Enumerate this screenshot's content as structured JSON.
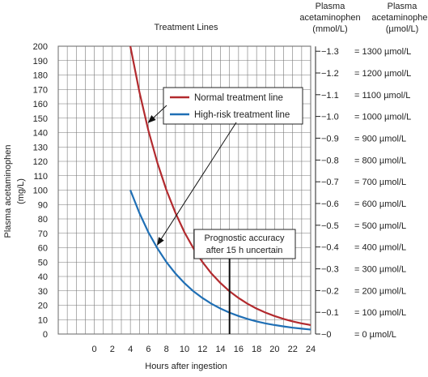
{
  "chart_data": {
    "type": "line",
    "title": "Treatment Lines",
    "xlabel": "Hours after ingestion",
    "ylabel": "Plasma acetaminophen (mg/L)",
    "xlim": [
      -4,
      24
    ],
    "ylim": [
      0,
      200
    ],
    "x_ticks": [
      0,
      2,
      4,
      6,
      8,
      10,
      12,
      14,
      16,
      18,
      20,
      22,
      24
    ],
    "y_ticks": [
      0,
      10,
      20,
      30,
      40,
      50,
      60,
      70,
      80,
      90,
      100,
      110,
      120,
      130,
      140,
      150,
      160,
      170,
      180,
      190,
      200
    ],
    "grid": true,
    "right_axis_mmol": {
      "header": "Plasma acetaminophen (mmol/L)",
      "ticks": [
        {
          "label": "−1.3",
          "mg": 196.5
        },
        {
          "label": "−1.2",
          "mg": 181.4
        },
        {
          "label": "−1.1",
          "mg": 166.3
        },
        {
          "label": "−1.0",
          "mg": 151.2
        },
        {
          "label": "−0.9",
          "mg": 136.1
        },
        {
          "label": "−0.8",
          "mg": 120.9
        },
        {
          "label": "−0.7",
          "mg": 105.8
        },
        {
          "label": "−0.6",
          "mg": 90.7
        },
        {
          "label": "−0.5",
          "mg": 75.6
        },
        {
          "label": "−0.4",
          "mg": 60.5
        },
        {
          "label": "−0.3",
          "mg": 45.3
        },
        {
          "label": "−0.2",
          "mg": 30.2
        },
        {
          "label": "−0.1",
          "mg": 15.1
        },
        {
          "label": "−0",
          "mg": 0
        }
      ]
    },
    "right_axis_umol": {
      "header": "Plasma acetaminophen (µmol/L)",
      "ticks": [
        {
          "label": "= 1300 µmol/L",
          "mg": 196.5
        },
        {
          "label": "= 1200 µmol/L",
          "mg": 181.4
        },
        {
          "label": "= 1100 µmol/L",
          "mg": 166.3
        },
        {
          "label": "= 1000 µmol/L",
          "mg": 151.2
        },
        {
          "label": "= 900 µmol/L",
          "mg": 136.1
        },
        {
          "label": "= 800 µmol/L",
          "mg": 120.9
        },
        {
          "label": "= 700 µmol/L",
          "mg": 105.8
        },
        {
          "label": "= 600 µmol/L",
          "mg": 90.7
        },
        {
          "label": "= 500 µmol/L",
          "mg": 75.6
        },
        {
          "label": "= 400 µmol/L",
          "mg": 60.5
        },
        {
          "label": "= 300 µmol/L",
          "mg": 45.3
        },
        {
          "label": "= 200 µmol/L",
          "mg": 30.2
        },
        {
          "label": "= 100 µmol/L",
          "mg": 15.1
        },
        {
          "label": "= 0 µmol/L",
          "mg": 0
        }
      ]
    },
    "series": [
      {
        "name": "Normal treatment line",
        "color": "#b22a2e",
        "x": [
          4,
          5,
          6,
          7,
          8,
          9,
          10,
          11,
          12,
          13,
          14,
          15,
          16,
          17,
          18,
          19,
          20,
          21,
          22,
          23,
          24
        ],
        "values": [
          200,
          168.2,
          141.4,
          118.9,
          100,
          84.1,
          70.7,
          59.5,
          50,
          42,
          35.4,
          29.7,
          25,
          21,
          17.7,
          14.9,
          12.5,
          10.5,
          8.8,
          7.4,
          6.25
        ]
      },
      {
        "name": "High-risk treatment line",
        "color": "#1f6fb5",
        "x": [
          4,
          5,
          6,
          7,
          8,
          9,
          10,
          11,
          12,
          13,
          14,
          15,
          16,
          17,
          18,
          19,
          20,
          21,
          22,
          23,
          24
        ],
        "values": [
          100,
          84.1,
          70.7,
          59.5,
          50,
          42,
          35.4,
          29.7,
          25,
          21,
          17.7,
          14.9,
          12.5,
          10.5,
          8.8,
          7.4,
          6.25,
          5.3,
          4.4,
          3.7,
          3.1
        ]
      }
    ],
    "annotations": [
      {
        "text_lines": [
          "Prognostic accuracy",
          "after 15 h uncertain"
        ],
        "x": 15
      }
    ],
    "legend_arrows": [
      {
        "series": 0,
        "target_x": 6,
        "target_y": 147
      },
      {
        "series": 1,
        "target_x": 7,
        "target_y": 62
      }
    ]
  }
}
